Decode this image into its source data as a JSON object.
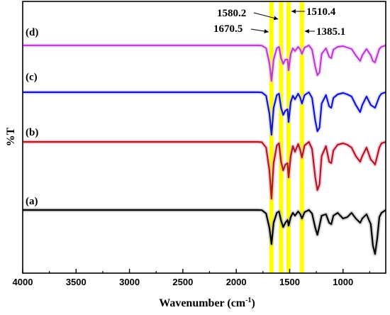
{
  "chart_data": {
    "type": "line",
    "xlabel": "Wavenumber (cm",
    "xlabel_sup": "-1",
    "xlabel_tail": ")",
    "ylabel": "%T",
    "xlim": [
      4000,
      600
    ],
    "x_reversed": true,
    "x_ticks": [
      4000,
      3500,
      3000,
      2500,
      2000,
      1500,
      1000
    ],
    "highlight_color": "#ffff00",
    "bands": [
      {
        "label": "1670.5",
        "x": 1670.5
      },
      {
        "label": "1580.2",
        "x": 1580.2
      },
      {
        "label": "1510.4",
        "x": 1510.4
      },
      {
        "label": "1385.1",
        "x": 1385.1
      }
    ],
    "series": [
      {
        "name": "(a)",
        "color": "#000000",
        "halo": "#b0b0b0",
        "points": [
          [
            4000,
            0
          ],
          [
            3800,
            0
          ],
          [
            3600,
            0
          ],
          [
            3400,
            0
          ],
          [
            3200,
            0
          ],
          [
            3000,
            0
          ],
          [
            2800,
            0
          ],
          [
            2600,
            0
          ],
          [
            2400,
            0
          ],
          [
            2200,
            0
          ],
          [
            2000,
            0
          ],
          [
            1800,
            0
          ],
          [
            1760,
            0.2
          ],
          [
            1720,
            5
          ],
          [
            1690,
            25
          ],
          [
            1670,
            48
          ],
          [
            1650,
            18
          ],
          [
            1620,
            4
          ],
          [
            1600,
            2
          ],
          [
            1580,
            15
          ],
          [
            1560,
            24
          ],
          [
            1540,
            18
          ],
          [
            1520,
            14
          ],
          [
            1510,
            22
          ],
          [
            1490,
            10
          ],
          [
            1470,
            4
          ],
          [
            1450,
            8
          ],
          [
            1420,
            2
          ],
          [
            1400,
            6
          ],
          [
            1385,
            12
          ],
          [
            1360,
            3
          ],
          [
            1320,
            0
          ],
          [
            1290,
            5
          ],
          [
            1260,
            25
          ],
          [
            1240,
            35
          ],
          [
            1220,
            22
          ],
          [
            1200,
            8
          ],
          [
            1160,
            6
          ],
          [
            1130,
            18
          ],
          [
            1110,
            20
          ],
          [
            1090,
            8
          ],
          [
            1050,
            4
          ],
          [
            1000,
            12
          ],
          [
            960,
            10
          ],
          [
            920,
            4
          ],
          [
            880,
            12
          ],
          [
            840,
            18
          ],
          [
            820,
            12
          ],
          [
            780,
            6
          ],
          [
            740,
            20
          ],
          [
            720,
            50
          ],
          [
            700,
            62
          ],
          [
            680,
            40
          ],
          [
            660,
            10
          ],
          [
            640,
            4
          ],
          [
            600,
            0
          ]
        ]
      },
      {
        "name": "(b)",
        "color": "#b11a1a",
        "halo": "#e6a8d0",
        "points": [
          [
            4000,
            0
          ],
          [
            3800,
            0
          ],
          [
            3600,
            0
          ],
          [
            3400,
            0
          ],
          [
            3200,
            0
          ],
          [
            3000,
            0
          ],
          [
            2800,
            0
          ],
          [
            2600,
            0
          ],
          [
            2400,
            0
          ],
          [
            2200,
            0
          ],
          [
            2000,
            0
          ],
          [
            1800,
            0
          ],
          [
            1760,
            0.5
          ],
          [
            1720,
            8
          ],
          [
            1690,
            40
          ],
          [
            1670,
            80
          ],
          [
            1650,
            30
          ],
          [
            1620,
            5
          ],
          [
            1600,
            2
          ],
          [
            1580,
            28
          ],
          [
            1560,
            40
          ],
          [
            1540,
            32
          ],
          [
            1520,
            30
          ],
          [
            1510,
            50
          ],
          [
            1490,
            20
          ],
          [
            1470,
            6
          ],
          [
            1450,
            14
          ],
          [
            1420,
            3
          ],
          [
            1400,
            12
          ],
          [
            1385,
            22
          ],
          [
            1360,
            5
          ],
          [
            1320,
            0
          ],
          [
            1290,
            10
          ],
          [
            1260,
            50
          ],
          [
            1240,
            68
          ],
          [
            1220,
            60
          ],
          [
            1200,
            20
          ],
          [
            1160,
            6
          ],
          [
            1130,
            28
          ],
          [
            1110,
            30
          ],
          [
            1090,
            12
          ],
          [
            1050,
            4
          ],
          [
            1000,
            2
          ],
          [
            960,
            4
          ],
          [
            920,
            8
          ],
          [
            880,
            20
          ],
          [
            840,
            28
          ],
          [
            820,
            20
          ],
          [
            780,
            8
          ],
          [
            740,
            25
          ],
          [
            720,
            28
          ],
          [
            700,
            32
          ],
          [
            680,
            20
          ],
          [
            660,
            8
          ],
          [
            640,
            2
          ],
          [
            600,
            0
          ]
        ]
      },
      {
        "name": "(c)",
        "color": "#1414d4",
        "halo": "#c8c8f0",
        "points": [
          [
            4000,
            0
          ],
          [
            3800,
            0
          ],
          [
            3600,
            0
          ],
          [
            3400,
            0
          ],
          [
            3200,
            0
          ],
          [
            3000,
            0
          ],
          [
            2800,
            0
          ],
          [
            2600,
            0
          ],
          [
            2400,
            0
          ],
          [
            2200,
            0
          ],
          [
            2000,
            0
          ],
          [
            1800,
            0
          ],
          [
            1760,
            0.3
          ],
          [
            1720,
            5
          ],
          [
            1690,
            30
          ],
          [
            1670,
            60
          ],
          [
            1650,
            22
          ],
          [
            1620,
            4
          ],
          [
            1600,
            2
          ],
          [
            1580,
            22
          ],
          [
            1560,
            32
          ],
          [
            1540,
            26
          ],
          [
            1520,
            24
          ],
          [
            1510,
            42
          ],
          [
            1490,
            14
          ],
          [
            1470,
            5
          ],
          [
            1450,
            10
          ],
          [
            1420,
            2
          ],
          [
            1400,
            8
          ],
          [
            1385,
            16
          ],
          [
            1360,
            4
          ],
          [
            1320,
            0
          ],
          [
            1290,
            8
          ],
          [
            1260,
            40
          ],
          [
            1240,
            55
          ],
          [
            1220,
            50
          ],
          [
            1200,
            16
          ],
          [
            1160,
            4
          ],
          [
            1130,
            20
          ],
          [
            1110,
            22
          ],
          [
            1090,
            8
          ],
          [
            1050,
            3
          ],
          [
            1000,
            1
          ],
          [
            960,
            3
          ],
          [
            920,
            6
          ],
          [
            880,
            18
          ],
          [
            840,
            28
          ],
          [
            820,
            18
          ],
          [
            780,
            6
          ],
          [
            740,
            18
          ],
          [
            720,
            20
          ],
          [
            700,
            22
          ],
          [
            680,
            14
          ],
          [
            660,
            6
          ],
          [
            640,
            2
          ],
          [
            600,
            0
          ]
        ]
      },
      {
        "name": "(d)",
        "color": "#c23ad6",
        "halo": "#e6c8f2",
        "points": [
          [
            4000,
            0
          ],
          [
            3800,
            0
          ],
          [
            3600,
            0
          ],
          [
            3400,
            0
          ],
          [
            3200,
            0
          ],
          [
            3000,
            0
          ],
          [
            2800,
            0
          ],
          [
            2600,
            0
          ],
          [
            2400,
            0
          ],
          [
            2200,
            0
          ],
          [
            2000,
            0
          ],
          [
            1800,
            0
          ],
          [
            1760,
            0.3
          ],
          [
            1720,
            4
          ],
          [
            1690,
            25
          ],
          [
            1670,
            50
          ],
          [
            1650,
            20
          ],
          [
            1620,
            4
          ],
          [
            1600,
            2
          ],
          [
            1580,
            18
          ],
          [
            1560,
            26
          ],
          [
            1540,
            20
          ],
          [
            1520,
            20
          ],
          [
            1510,
            35
          ],
          [
            1490,
            12
          ],
          [
            1470,
            4
          ],
          [
            1450,
            8
          ],
          [
            1420,
            2
          ],
          [
            1400,
            6
          ],
          [
            1385,
            12
          ],
          [
            1360,
            3
          ],
          [
            1320,
            0
          ],
          [
            1290,
            6
          ],
          [
            1260,
            30
          ],
          [
            1240,
            42
          ],
          [
            1220,
            38
          ],
          [
            1200,
            12
          ],
          [
            1160,
            4
          ],
          [
            1130,
            16
          ],
          [
            1110,
            18
          ],
          [
            1090,
            6
          ],
          [
            1050,
            2
          ],
          [
            1000,
            1
          ],
          [
            960,
            3
          ],
          [
            920,
            5
          ],
          [
            880,
            14
          ],
          [
            840,
            22
          ],
          [
            820,
            14
          ],
          [
            780,
            5
          ],
          [
            740,
            14
          ],
          [
            720,
            22
          ],
          [
            700,
            24
          ],
          [
            680,
            14
          ],
          [
            660,
            5
          ],
          [
            640,
            2
          ],
          [
            600,
            0
          ]
        ]
      }
    ]
  }
}
